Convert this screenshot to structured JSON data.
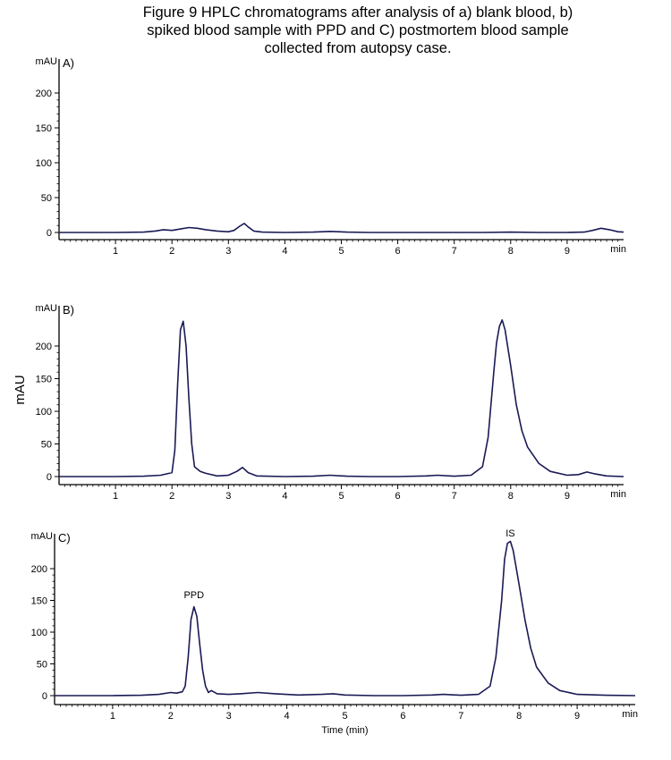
{
  "figure_title_lines": [
    "Figure 9 HPLC chromatograms after analysis of a) blank blood, b)",
    "spiked blood sample with PPD and C) postmortem blood sample",
    "collected from autopsy case."
  ],
  "shared_ylabel": "mAU",
  "colors": {
    "trace": "#1a1a55",
    "axis": "#000000"
  },
  "chart_data": [
    {
      "type": "line",
      "panel_label": "A)",
      "y_unit_label": "mAU",
      "x_unit_label": "min",
      "xlabel": "",
      "xlim": [
        0,
        10.0
      ],
      "ylim": [
        -8,
        230
      ],
      "x_ticks": [
        1,
        2,
        3,
        4,
        5,
        6,
        7,
        8,
        9
      ],
      "y_ticks": [
        0,
        50,
        100,
        150,
        200
      ],
      "series": [
        {
          "x": [
            0,
            0.5,
            1.0,
            1.5,
            1.7,
            1.85,
            2.0,
            2.15,
            2.3,
            2.45,
            2.6,
            2.8,
            3.0,
            3.1,
            3.2,
            3.28,
            3.35,
            3.45,
            3.6,
            4.0,
            4.5,
            4.8,
            5.1,
            5.5,
            6.0,
            6.5,
            7.0,
            7.5,
            8.0,
            8.5,
            9.0,
            9.3,
            9.45,
            9.6,
            9.75,
            9.9,
            10.0
          ],
          "y": [
            0,
            0,
            0,
            0.5,
            2,
            4,
            3,
            5,
            7,
            6,
            4,
            2,
            1,
            3,
            9,
            13,
            8,
            2,
            0.5,
            0,
            0.5,
            1.5,
            0.5,
            0,
            0,
            0,
            0,
            0,
            0.5,
            0,
            0,
            0.5,
            3,
            6,
            4,
            1,
            0.5
          ]
        }
      ]
    },
    {
      "type": "line",
      "panel_label": "B)",
      "y_unit_label": "mAU",
      "x_unit_label": "min",
      "xlabel": "",
      "xlim": [
        0,
        10.0
      ],
      "ylim": [
        -8,
        245
      ],
      "x_ticks": [
        1,
        2,
        3,
        4,
        5,
        6,
        7,
        8,
        9
      ],
      "y_ticks": [
        0,
        50,
        100,
        150,
        200
      ],
      "series": [
        {
          "x": [
            0,
            0.5,
            1.0,
            1.5,
            1.8,
            2.0,
            2.05,
            2.1,
            2.15,
            2.2,
            2.25,
            2.3,
            2.35,
            2.4,
            2.5,
            2.6,
            2.8,
            3.0,
            3.15,
            3.25,
            3.35,
            3.5,
            4.0,
            4.5,
            4.8,
            5.1,
            5.5,
            6.0,
            6.5,
            6.7,
            7.0,
            7.3,
            7.5,
            7.6,
            7.7,
            7.75,
            7.8,
            7.85,
            7.9,
            8.0,
            8.1,
            8.2,
            8.3,
            8.5,
            8.7,
            9.0,
            9.2,
            9.35,
            9.5,
            9.7,
            10.0
          ],
          "y": [
            0,
            0,
            0,
            0.5,
            2,
            6,
            40,
            140,
            225,
            238,
            200,
            120,
            50,
            15,
            8,
            5,
            1,
            2,
            8,
            14,
            6,
            1,
            0,
            0.5,
            2,
            0.5,
            0,
            0,
            1,
            2,
            0.5,
            2,
            15,
            60,
            160,
            205,
            230,
            240,
            225,
            170,
            110,
            70,
            45,
            20,
            8,
            2,
            3,
            7,
            4,
            1,
            0
          ]
        }
      ]
    },
    {
      "type": "line",
      "panel_label": "C)",
      "y_unit_label": "mAU",
      "x_unit_label": "min",
      "xlabel": "Time (min)",
      "xlim": [
        0,
        10.0
      ],
      "ylim": [
        -8,
        245
      ],
      "x_ticks": [
        1,
        2,
        3,
        4,
        5,
        6,
        7,
        8,
        9
      ],
      "y_ticks": [
        0,
        50,
        100,
        150,
        200
      ],
      "annotations": [
        {
          "text": "PPD",
          "x": 2.4,
          "y": 145
        },
        {
          "text": "IS",
          "x": 7.85,
          "y": 242
        }
      ],
      "series": [
        {
          "x": [
            0,
            0.5,
            1.0,
            1.5,
            1.8,
            2.0,
            2.1,
            2.2,
            2.25,
            2.3,
            2.35,
            2.4,
            2.45,
            2.5,
            2.55,
            2.6,
            2.65,
            2.7,
            2.8,
            3.0,
            3.2,
            3.5,
            3.8,
            4.2,
            4.6,
            4.8,
            5.0,
            5.5,
            6.0,
            6.5,
            6.7,
            7.0,
            7.3,
            7.5,
            7.6,
            7.7,
            7.75,
            7.8,
            7.85,
            7.9,
            8.0,
            8.1,
            8.2,
            8.3,
            8.5,
            8.7,
            9.0,
            9.5,
            10.0
          ],
          "y": [
            0,
            0,
            0,
            0.5,
            2,
            5,
            4,
            6,
            15,
            60,
            120,
            140,
            125,
            80,
            40,
            15,
            5,
            8,
            3,
            2,
            3,
            5,
            3,
            1,
            2,
            3,
            1,
            0,
            0,
            1,
            2,
            0.5,
            2,
            15,
            60,
            150,
            215,
            240,
            243,
            228,
            175,
            120,
            75,
            45,
            20,
            8,
            2,
            0.5,
            0
          ]
        }
      ]
    }
  ]
}
